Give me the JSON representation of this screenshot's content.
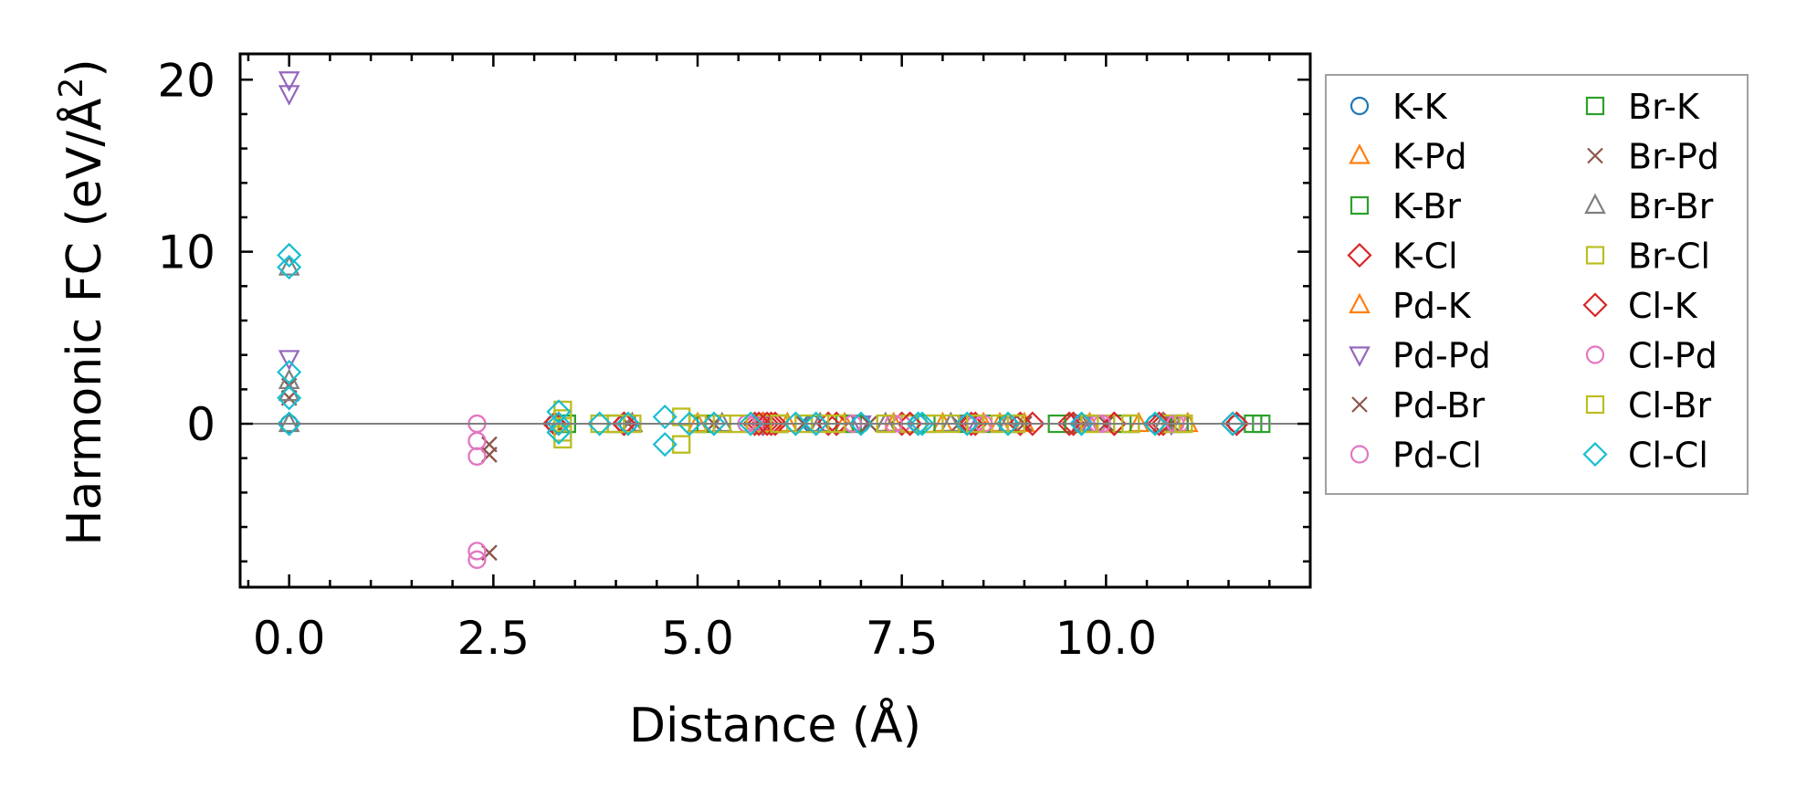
{
  "chart_data": {
    "type": "scatter",
    "title": "",
    "xlabel": "Distance (Å)",
    "ylabel_main": "Harmonic FC (eV/Å",
    "ylabel_sup": "2",
    "ylabel_close": ")",
    "xlim": [
      -0.6,
      12.5
    ],
    "ylim": [
      -9.5,
      21.5
    ],
    "xticks": [
      0.0,
      2.5,
      5.0,
      7.5,
      10.0
    ],
    "xtick_labels": [
      "0.0",
      "2.5",
      "5.0",
      "7.5",
      "10.0"
    ],
    "yticks": [
      0,
      10,
      20
    ],
    "ytick_labels": [
      "0",
      "10",
      "20"
    ],
    "grid": false,
    "zero_line": true,
    "legend_position": "outside-right",
    "series": [
      {
        "name": "K-K",
        "marker": "circle",
        "color": "#1f77b4",
        "points": [
          [
            0,
            0
          ],
          [
            3.25,
            0
          ],
          [
            4.15,
            0
          ],
          [
            5.6,
            0
          ],
          [
            6.4,
            0
          ],
          [
            7.0,
            0
          ],
          [
            7.7,
            0
          ],
          [
            8.3,
            0
          ],
          [
            8.8,
            0
          ],
          [
            9.7,
            0
          ],
          [
            10.6,
            0
          ],
          [
            11.6,
            0
          ]
        ]
      },
      {
        "name": "K-Pd",
        "marker": "triangle-up",
        "color": "#ff7f0e",
        "points": [
          [
            3.3,
            0
          ],
          [
            4.2,
            0
          ],
          [
            5.0,
            0
          ],
          [
            6.1,
            0
          ],
          [
            6.8,
            0
          ],
          [
            7.4,
            0
          ],
          [
            8.0,
            0
          ],
          [
            8.5,
            0
          ],
          [
            9.0,
            0
          ],
          [
            9.8,
            0
          ],
          [
            10.4,
            0
          ],
          [
            11.0,
            0
          ]
        ]
      },
      {
        "name": "K-Br",
        "marker": "square",
        "color": "#2ca02c",
        "points": [
          [
            3.4,
            0
          ],
          [
            4.0,
            0
          ],
          [
            5.1,
            0
          ],
          [
            6.0,
            0
          ],
          [
            6.8,
            0
          ],
          [
            7.6,
            0
          ],
          [
            8.3,
            0
          ],
          [
            8.9,
            0
          ],
          [
            9.6,
            0
          ],
          [
            10.2,
            0
          ],
          [
            10.8,
            0
          ],
          [
            11.8,
            0
          ]
        ]
      },
      {
        "name": "K-Cl",
        "marker": "diamond",
        "color": "#d62728",
        "points": [
          [
            3.25,
            0
          ],
          [
            4.1,
            0
          ],
          [
            5.7,
            0
          ],
          [
            5.8,
            0
          ],
          [
            5.9,
            0
          ],
          [
            6.6,
            0
          ],
          [
            7.5,
            0
          ],
          [
            8.4,
            0
          ],
          [
            9.1,
            0
          ],
          [
            9.6,
            0
          ],
          [
            10.1,
            0
          ],
          [
            10.7,
            0
          ],
          [
            11.6,
            0
          ]
        ]
      },
      {
        "name": "Pd-K",
        "marker": "triangle-up",
        "color": "#ff7f0e",
        "points": [
          [
            3.3,
            0
          ],
          [
            4.2,
            0
          ],
          [
            5.8,
            0
          ],
          [
            6.5,
            0
          ],
          [
            7.3,
            0
          ],
          [
            8.1,
            0
          ],
          [
            8.7,
            0
          ],
          [
            9.7,
            0
          ],
          [
            10.7,
            0
          ]
        ]
      },
      {
        "name": "Pd-Pd",
        "marker": "triangle-down",
        "color": "#9467bd",
        "points": [
          [
            0,
            20.0
          ],
          [
            0,
            19.2
          ],
          [
            0,
            3.8
          ],
          [
            5.8,
            0
          ],
          [
            7.0,
            0
          ],
          [
            8.3,
            0
          ],
          [
            9.7,
            0
          ],
          [
            10.8,
            0
          ]
        ]
      },
      {
        "name": "Pd-Br",
        "marker": "x",
        "color": "#8c564b",
        "points": [
          [
            0,
            1.5
          ],
          [
            0,
            2.2
          ],
          [
            2.45,
            -1.2
          ],
          [
            2.45,
            -1.8
          ],
          [
            2.45,
            -7.5
          ],
          [
            4.15,
            0
          ],
          [
            5.2,
            0
          ],
          [
            6.3,
            0
          ],
          [
            7.1,
            0
          ],
          [
            8.2,
            0
          ],
          [
            9.0,
            0
          ],
          [
            10.0,
            0
          ],
          [
            10.8,
            0
          ]
        ]
      },
      {
        "name": "Pd-Cl",
        "marker": "circle",
        "color": "#e377c2",
        "points": [
          [
            2.3,
            0.0
          ],
          [
            2.3,
            -1.0
          ],
          [
            2.3,
            -1.9
          ],
          [
            2.3,
            -7.4
          ],
          [
            2.3,
            -7.9
          ],
          [
            4.1,
            0
          ],
          [
            5.7,
            0
          ],
          [
            6.9,
            0
          ],
          [
            7.5,
            0
          ],
          [
            8.4,
            0
          ],
          [
            9.9,
            0
          ],
          [
            10.9,
            0
          ]
        ]
      },
      {
        "name": "Br-K",
        "marker": "square",
        "color": "#2ca02c",
        "points": [
          [
            3.4,
            0
          ],
          [
            4.0,
            0
          ],
          [
            5.0,
            0
          ],
          [
            6.0,
            0
          ],
          [
            6.9,
            0
          ],
          [
            7.8,
            0
          ],
          [
            8.6,
            0
          ],
          [
            9.4,
            0
          ],
          [
            10.3,
            0
          ],
          [
            10.9,
            0
          ],
          [
            11.9,
            0
          ]
        ]
      },
      {
        "name": "Br-Pd",
        "marker": "x",
        "color": "#8c564b",
        "points": [
          [
            0,
            1.5
          ],
          [
            2.45,
            -1.2
          ],
          [
            2.45,
            -1.8
          ],
          [
            2.45,
            -7.5
          ],
          [
            4.15,
            0
          ],
          [
            5.2,
            0
          ],
          [
            6.3,
            0
          ],
          [
            7.1,
            0
          ],
          [
            8.2,
            0
          ],
          [
            9.0,
            0
          ],
          [
            10.0,
            0
          ],
          [
            10.8,
            0
          ]
        ]
      },
      {
        "name": "Br-Br",
        "marker": "triangle-up",
        "color": "#7f7f7f",
        "points": [
          [
            0,
            0
          ],
          [
            0,
            1.8
          ],
          [
            0,
            2.5
          ],
          [
            0,
            9.1
          ],
          [
            3.3,
            0
          ],
          [
            4.2,
            0
          ],
          [
            5.3,
            0
          ],
          [
            6.5,
            0
          ],
          [
            7.3,
            0
          ],
          [
            8.1,
            0
          ],
          [
            8.8,
            0
          ],
          [
            9.7,
            0
          ],
          [
            10.7,
            0
          ]
        ]
      },
      {
        "name": "Br-Cl",
        "marker": "square",
        "color": "#bcbd22",
        "points": [
          [
            3.35,
            0.8
          ],
          [
            3.35,
            0.3
          ],
          [
            3.35,
            -0.5
          ],
          [
            3.35,
            -0.9
          ],
          [
            3.8,
            0
          ],
          [
            4.0,
            0
          ],
          [
            4.2,
            0
          ],
          [
            4.8,
            0.4
          ],
          [
            4.8,
            -1.2
          ],
          [
            5.0,
            0
          ],
          [
            5.3,
            0
          ],
          [
            5.5,
            0
          ],
          [
            5.8,
            0
          ],
          [
            6.0,
            0
          ],
          [
            6.3,
            0
          ],
          [
            6.5,
            0
          ],
          [
            6.7,
            0
          ],
          [
            7.3,
            0
          ],
          [
            7.6,
            0
          ],
          [
            7.9,
            0
          ],
          [
            8.1,
            0
          ],
          [
            8.4,
            0
          ],
          [
            8.7,
            0
          ],
          [
            8.9,
            0
          ],
          [
            9.8,
            0
          ],
          [
            10.0,
            0
          ],
          [
            10.3,
            0
          ],
          [
            10.8,
            0
          ],
          [
            10.95,
            0
          ]
        ]
      },
      {
        "name": "Cl-K",
        "marker": "diamond",
        "color": "#d62728",
        "points": [
          [
            3.25,
            0
          ],
          [
            4.1,
            0
          ],
          [
            5.75,
            0
          ],
          [
            5.85,
            0
          ],
          [
            5.95,
            0
          ],
          [
            6.7,
            0
          ],
          [
            7.6,
            0
          ],
          [
            8.35,
            0
          ],
          [
            8.95,
            0
          ],
          [
            9.55,
            0
          ],
          [
            10.1,
            0
          ],
          [
            10.65,
            0
          ],
          [
            11.55,
            0
          ]
        ]
      },
      {
        "name": "Cl-Pd",
        "marker": "circle",
        "color": "#e377c2",
        "points": [
          [
            2.3,
            0.0
          ],
          [
            2.3,
            -1.0
          ],
          [
            2.3,
            -1.9
          ],
          [
            2.3,
            -7.4
          ],
          [
            2.3,
            -7.9
          ],
          [
            5.6,
            0
          ],
          [
            6.9,
            0
          ],
          [
            7.4,
            0
          ],
          [
            8.5,
            0
          ],
          [
            9.95,
            0
          ],
          [
            10.85,
            0
          ]
        ]
      },
      {
        "name": "Cl-Br",
        "marker": "square",
        "color": "#bcbd22",
        "points": [
          [
            3.35,
            0.8
          ],
          [
            3.35,
            0.3
          ],
          [
            3.35,
            -0.5
          ],
          [
            3.35,
            -0.9
          ],
          [
            3.8,
            0
          ],
          [
            4.0,
            0
          ],
          [
            4.2,
            0
          ],
          [
            4.8,
            0.4
          ],
          [
            4.8,
            -1.2
          ],
          [
            5.0,
            0
          ],
          [
            5.3,
            0
          ],
          [
            5.5,
            0
          ],
          [
            6.0,
            0
          ],
          [
            6.3,
            0
          ],
          [
            6.7,
            0
          ],
          [
            7.3,
            0
          ],
          [
            7.9,
            0
          ],
          [
            8.4,
            0
          ],
          [
            8.9,
            0
          ],
          [
            9.8,
            0
          ],
          [
            10.3,
            0
          ],
          [
            10.95,
            0
          ]
        ]
      },
      {
        "name": "Cl-Cl",
        "marker": "diamond",
        "color": "#17becf",
        "points": [
          [
            0,
            0
          ],
          [
            0,
            1.5
          ],
          [
            0,
            3.0
          ],
          [
            0,
            9.1
          ],
          [
            0,
            9.8
          ],
          [
            3.3,
            0.7
          ],
          [
            3.3,
            -0.5
          ],
          [
            3.3,
            0
          ],
          [
            3.8,
            0
          ],
          [
            4.15,
            0
          ],
          [
            4.6,
            0.4
          ],
          [
            4.6,
            -1.2
          ],
          [
            4.9,
            0
          ],
          [
            5.2,
            0
          ],
          [
            5.65,
            0
          ],
          [
            6.2,
            0
          ],
          [
            6.45,
            0
          ],
          [
            7.0,
            0
          ],
          [
            7.7,
            0
          ],
          [
            7.75,
            0
          ],
          [
            8.3,
            0
          ],
          [
            8.8,
            0
          ],
          [
            9.7,
            0
          ],
          [
            10.6,
            0
          ],
          [
            11.55,
            0
          ]
        ]
      }
    ]
  }
}
